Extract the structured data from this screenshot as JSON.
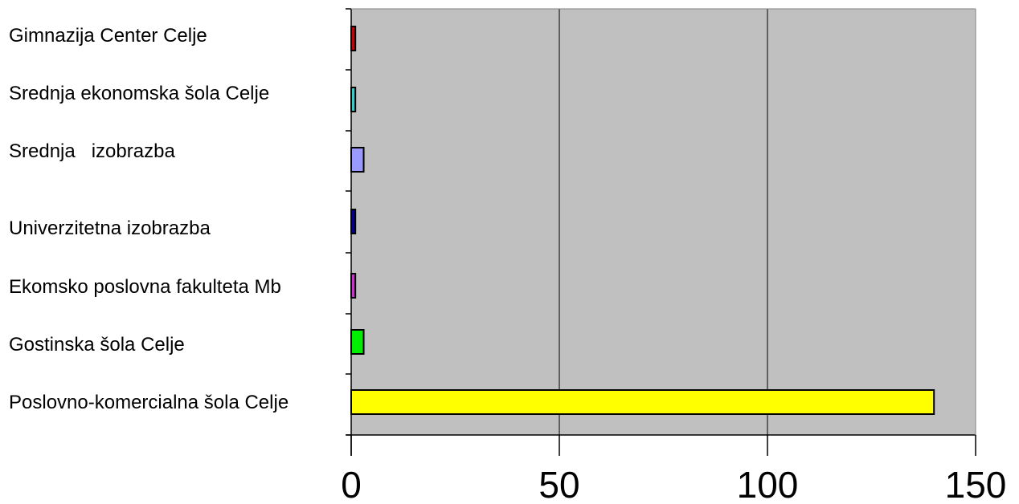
{
  "chart_data": {
    "type": "bar",
    "orientation": "horizontal",
    "categories": [
      "Gimnazija Center Celje",
      "Srednja ekonomska šola Celje",
      "Srednja   izobrazba",
      "Univerzitetna izobrazba",
      "Ekomsko poslovna fakulteta Mb",
      "Gostinska šola Celje",
      "Poslovno-komercialna šola Celje"
    ],
    "values": [
      1,
      1,
      3,
      1,
      1,
      3,
      140
    ],
    "bar_colors": [
      "#cc0000",
      "#33cccc",
      "#9999ff",
      "#000099",
      "#cc33cc",
      "#00ee00",
      "#ffff00"
    ],
    "xlim": [
      0,
      150
    ],
    "xticks": [
      0,
      50,
      100,
      150
    ],
    "title": "",
    "xlabel": "",
    "ylabel": "",
    "grid": "vertical",
    "plot_background": "#c0c0c0",
    "legend": "none"
  }
}
